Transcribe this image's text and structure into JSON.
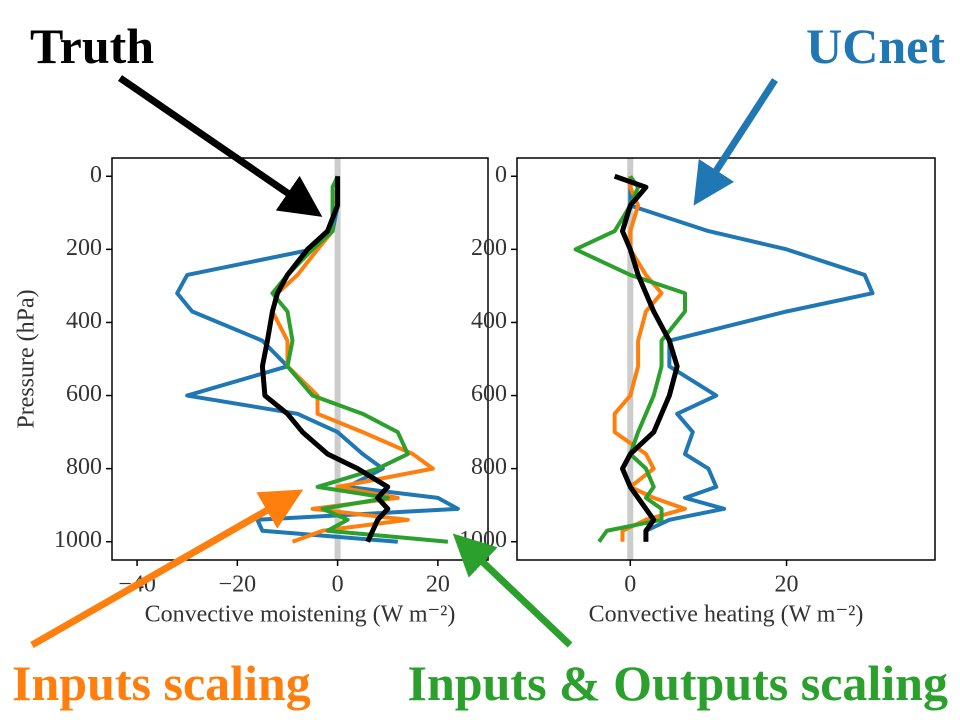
{
  "chart_data": [
    {
      "type": "line",
      "xlabel": "Convective moistening (W m⁻²)",
      "ylabel": "Pressure (hPa)",
      "xlim": [
        -45,
        30
      ],
      "ylim": [
        1050,
        -50
      ],
      "xticks": [
        {
          "value": -40,
          "label": "−40"
        },
        {
          "value": -20,
          "label": "−20"
        },
        0,
        20
      ],
      "yticks": [
        0,
        200,
        400,
        600,
        800,
        1000
      ],
      "y": [
        0,
        30,
        80,
        150,
        200,
        270,
        320,
        370,
        450,
        520,
        600,
        650,
        700,
        760,
        800,
        850,
        880,
        910,
        940,
        970,
        1000
      ],
      "series": [
        {
          "name": "UCnet",
          "color": "#1f77b4",
          "values": [
            0,
            0,
            0,
            -1,
            -5,
            -30,
            -32,
            -29,
            -15,
            -10,
            -30,
            -8,
            0,
            5,
            9,
            2,
            20,
            24,
            -16,
            -15,
            12
          ]
        },
        {
          "name": "Inputs scaling",
          "color": "#ff7f0e",
          "values": [
            0,
            0,
            -1,
            -1,
            -4,
            -8,
            -12,
            -13,
            -10,
            -10,
            -4,
            -4,
            5,
            15,
            19,
            0,
            12,
            -5,
            14,
            -3,
            -9
          ]
        },
        {
          "name": "Inputs & Outputs scaling",
          "color": "#2ca02c",
          "values": [
            0,
            -1,
            -1,
            -1,
            -5,
            -10,
            -13,
            -10,
            -9,
            -10,
            -5,
            5,
            12,
            14,
            8,
            -4,
            10,
            -3,
            2,
            -2,
            22
          ]
        },
        {
          "name": "Truth",
          "color": "#000000",
          "values": [
            0,
            0,
            0,
            -2,
            -6,
            -10,
            -12,
            -13,
            -14,
            -15,
            -14.5,
            -10,
            -7,
            -2,
            4,
            10,
            8,
            10,
            8,
            7,
            6
          ]
        }
      ]
    },
    {
      "type": "line",
      "xlabel": "Convective heating (W m⁻²)",
      "xlim": [
        -14.5,
        39
      ],
      "ylim": [
        1050,
        -50
      ],
      "xticks": [
        0,
        20
      ],
      "yticks": [
        0,
        200,
        400,
        600,
        800,
        1000
      ],
      "y": [
        0,
        30,
        80,
        150,
        200,
        270,
        320,
        370,
        450,
        520,
        600,
        650,
        700,
        760,
        800,
        850,
        880,
        910,
        940,
        970,
        1000
      ],
      "series": [
        {
          "color": "#1f77b4",
          "values": [
            0,
            0,
            0,
            10,
            20,
            30,
            31,
            20,
            5,
            5,
            11,
            6,
            8,
            7,
            10,
            11,
            7,
            12,
            5,
            2,
            2
          ]
        },
        {
          "color": "#ff7f0e",
          "values": [
            0,
            0,
            1,
            0,
            0,
            2,
            4,
            2,
            1,
            1,
            0,
            -2,
            -2,
            2,
            3,
            0,
            3,
            7,
            2,
            -1,
            -1
          ]
        },
        {
          "color": "#2ca02c",
          "values": [
            0,
            1,
            0,
            -2,
            -7,
            0,
            7,
            7,
            4,
            4,
            3,
            2,
            1,
            0,
            2,
            3,
            2,
            4,
            4,
            -3,
            -4
          ]
        },
        {
          "color": "#000000",
          "values": [
            -2,
            2,
            0,
            -1,
            0,
            1,
            2,
            3,
            5,
            6,
            5,
            4,
            3,
            0,
            -1,
            0,
            1,
            2,
            3,
            2,
            2
          ]
        }
      ]
    }
  ]
}
